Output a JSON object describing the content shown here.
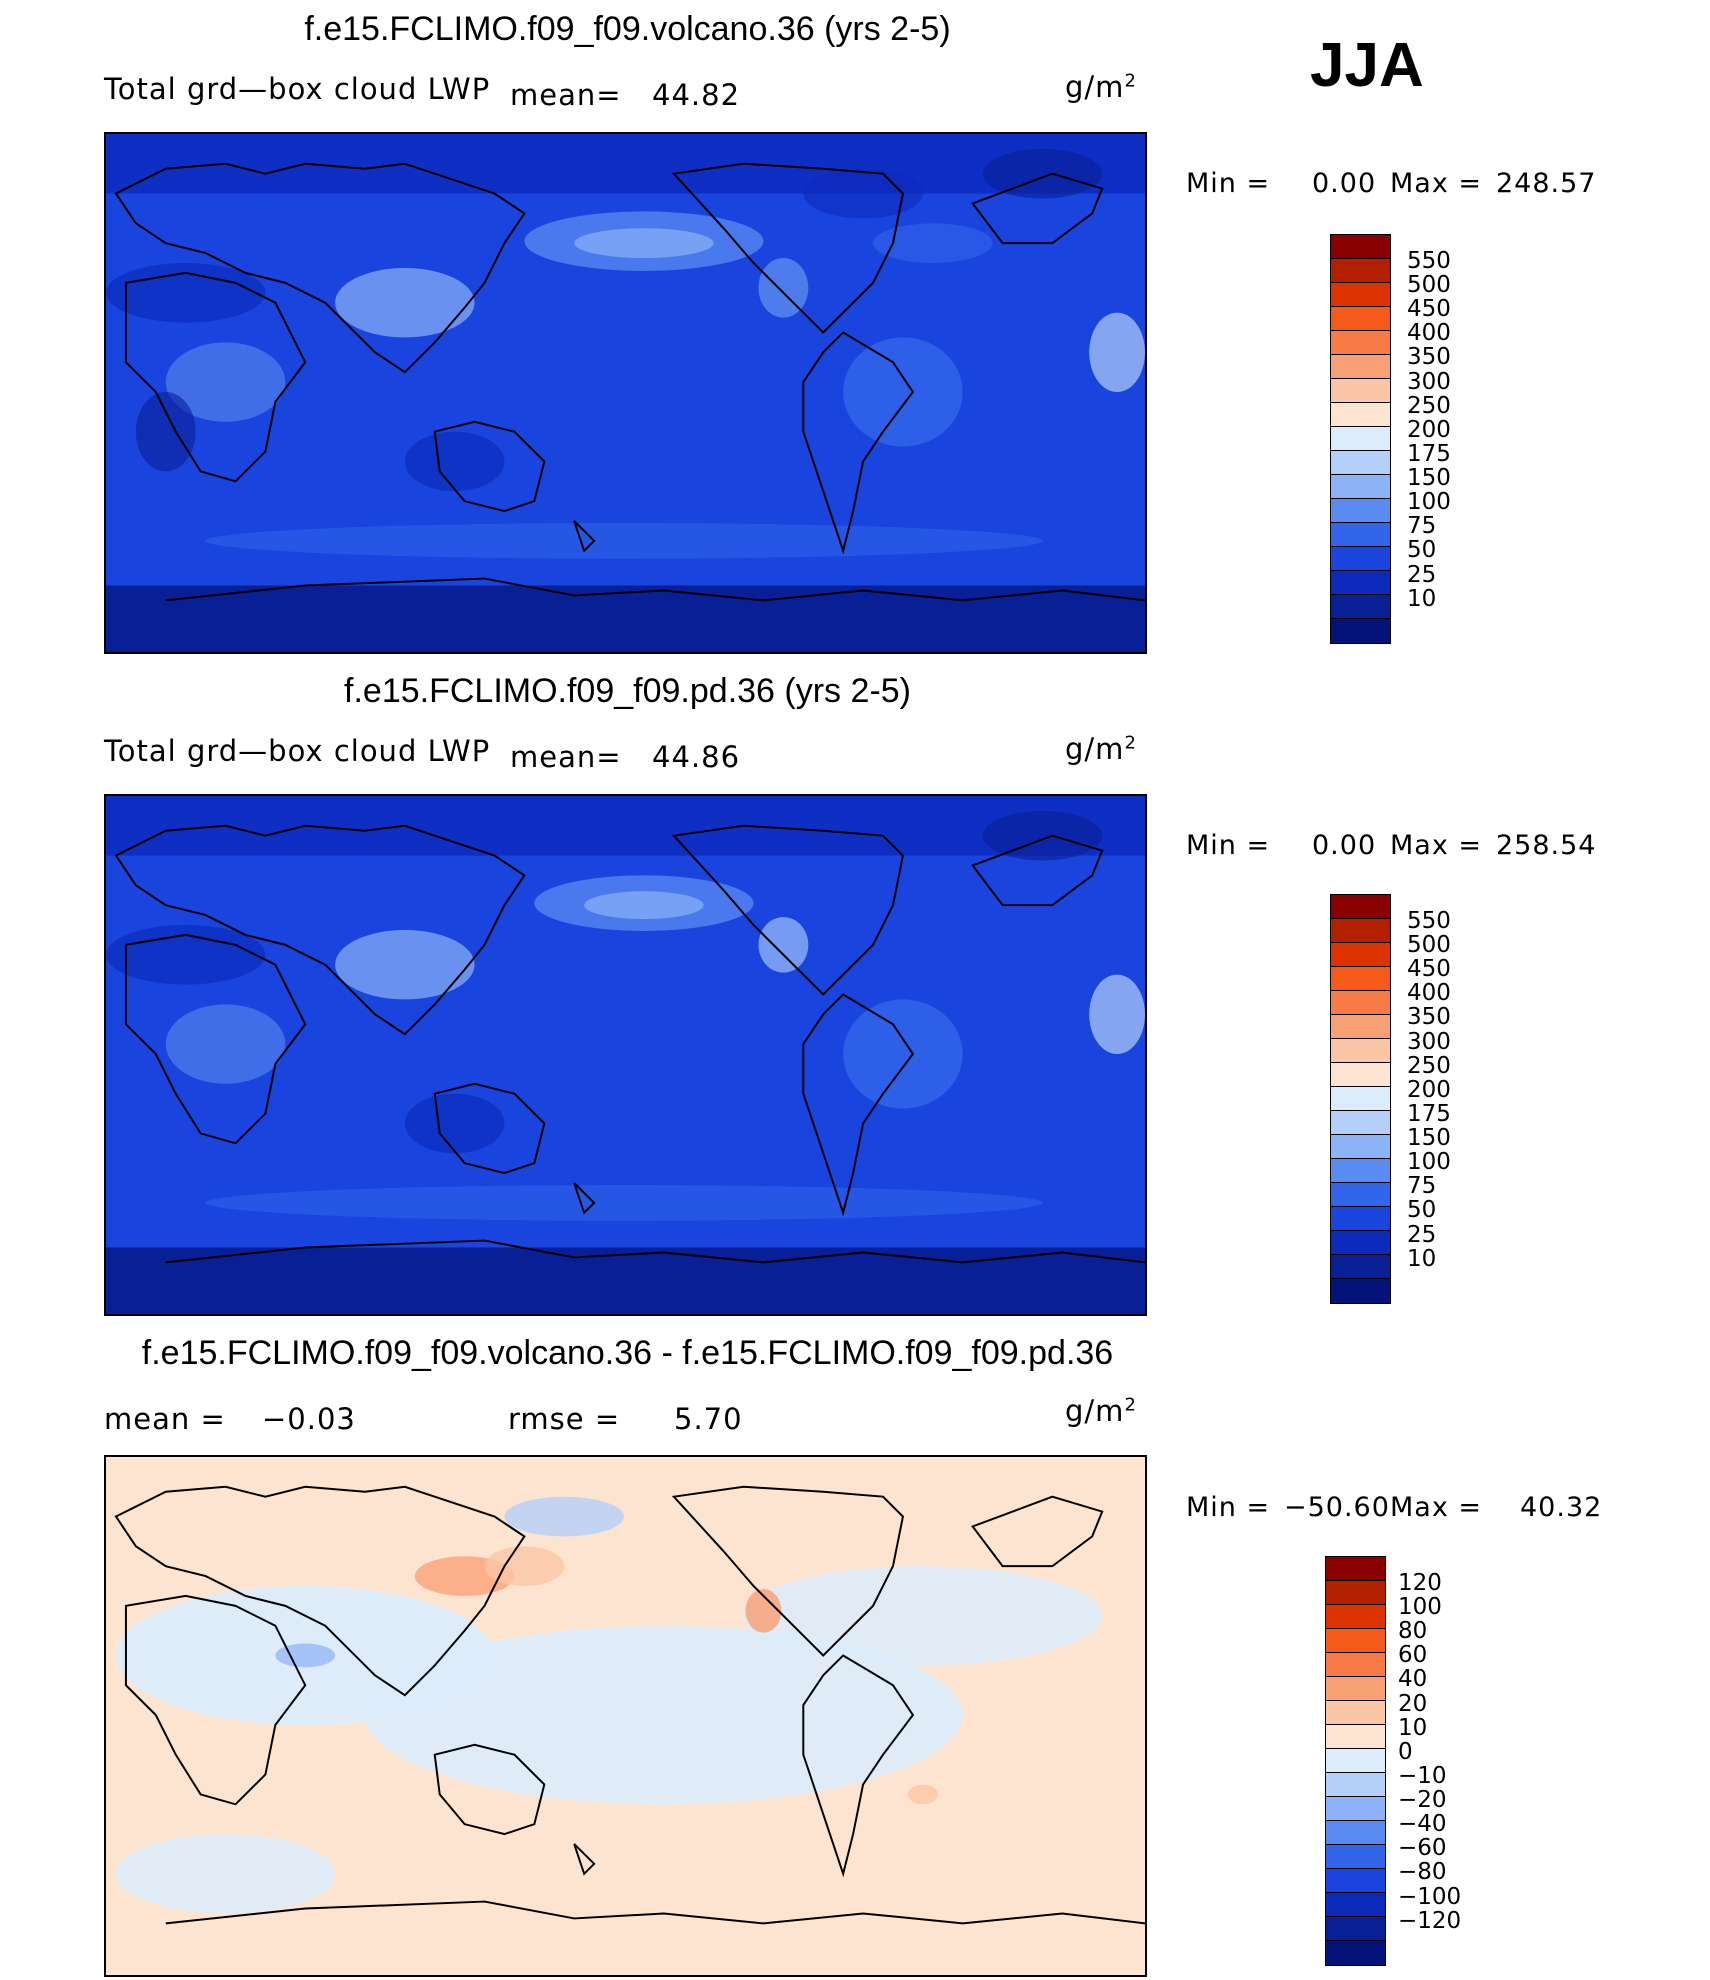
{
  "season": "JJA",
  "unit_prefix": "g/m",
  "unit_sup": "2",
  "panels": [
    {
      "title": "f.e15.FCLIMO.f09_f09.volcano.36 (yrs 2-5)",
      "variable": "Total grd—box cloud LWP",
      "mean_label": "mean=",
      "mean_value": "44.82",
      "min_label": "Min =",
      "min_value": "0.00",
      "max_label": "Max =",
      "max_value": "248.57"
    },
    {
      "title": "f.e15.FCLIMO.f09_f09.pd.36 (yrs 2-5)",
      "variable": "Total grd—box cloud LWP",
      "mean_label": "mean=",
      "mean_value": "44.86",
      "min_label": "Min =",
      "min_value": "0.00",
      "max_label": "Max =",
      "max_value": "258.54"
    },
    {
      "title": "f.e15.FCLIMO.f09_f09.volcano.36 - f.e15.FCLIMO.f09_f09.pd.36",
      "mean_label": "mean =",
      "mean_value": "−0.03",
      "rmse_label": "rmse =",
      "rmse_value": "5.70",
      "min_label": "Min =",
      "min_value": "−50.60",
      "max_label": "Max =",
      "max_value": "40.32"
    }
  ],
  "colors": {
    "abs_scale": [
      "#8b0000",
      "#b22000",
      "#dd3300",
      "#f55a1a",
      "#f87a44",
      "#f99f74",
      "#fbc6a6",
      "#fde4d0",
      "#dcecfb",
      "#b4cffa",
      "#8cb2f8",
      "#5a8bf0",
      "#3266ea",
      "#1a44de",
      "#0c2bbd",
      "#081f96",
      "#04127a"
    ],
    "diff_scale": [
      "#8b0000",
      "#b22000",
      "#dd3300",
      "#f55a1a",
      "#f87a44",
      "#f99f74",
      "#fbc6a6",
      "#fde4d0",
      "#dcecfb",
      "#b4cffa",
      "#8cb2f8",
      "#5a8bf0",
      "#3266ea",
      "#1a44de",
      "#0c2bbd",
      "#081f96",
      "#04127a"
    ],
    "map_abs_base": "#1a44de",
    "map_diff_base": "#fde4d0"
  },
  "chart_data": [
    {
      "type": "heatmap",
      "title": "f.e15.FCLIMO.f09_f09.volcano.36 (yrs 2-5)",
      "variable": "Total grd-box cloud LWP",
      "units": "g/m2",
      "mean": 44.82,
      "min": 0.0,
      "max": 248.57,
      "contour_levels": [
        10,
        25,
        50,
        75,
        100,
        150,
        175,
        200,
        250,
        300,
        350,
        400,
        450,
        500,
        550
      ]
    },
    {
      "type": "heatmap",
      "title": "f.e15.FCLIMO.f09_f09.pd.36 (yrs 2-5)",
      "variable": "Total grd-box cloud LWP",
      "units": "g/m2",
      "mean": 44.86,
      "min": 0.0,
      "max": 258.54,
      "contour_levels": [
        10,
        25,
        50,
        75,
        100,
        150,
        175,
        200,
        250,
        300,
        350,
        400,
        450,
        500,
        550
      ]
    },
    {
      "type": "heatmap",
      "title": "f.e15.FCLIMO.f09_f09.volcano.36 - f.e15.FCLIMO.f09_f09.pd.36",
      "units": "g/m2",
      "mean": -0.03,
      "rmse": 5.7,
      "min": -50.6,
      "max": 40.32,
      "contour_levels": [
        -120,
        -100,
        -80,
        -60,
        -40,
        -20,
        -10,
        0,
        10,
        20,
        40,
        60,
        80,
        100,
        120
      ]
    }
  ],
  "colorbar_labels": {
    "abs": [
      "550",
      "500",
      "450",
      "400",
      "350",
      "300",
      "250",
      "200",
      "175",
      "150",
      "100",
      "75",
      "50",
      "25",
      "10"
    ],
    "diff": [
      "120",
      "100",
      "80",
      "60",
      "40",
      "20",
      "10",
      "0",
      "−10",
      "−20",
      "−40",
      "−60",
      "−80",
      "−100",
      "−120"
    ]
  }
}
